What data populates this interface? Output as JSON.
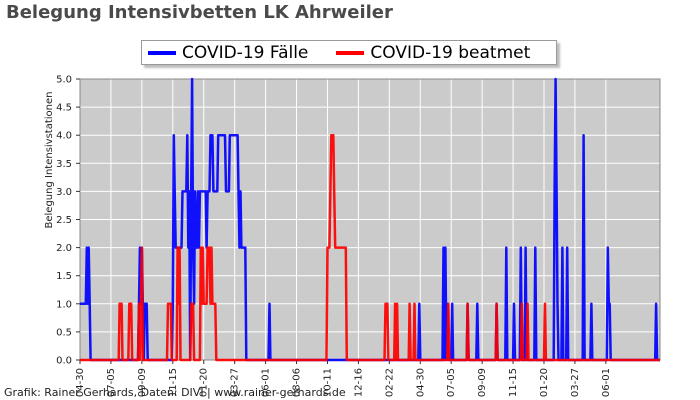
{
  "title": "Belegung Intensivbetten LK Ahrweiler",
  "footer": "Grafik: Rainer Gerhards, Daten: DIVI | www.rainer-gerhards.de",
  "chart_data": {
    "type": "line",
    "ylabel": "Belegung Intensivstationen",
    "ylim": [
      0,
      5
    ],
    "yticks": [
      "0.0",
      "0.5",
      "1.0",
      "1.5",
      "2.0",
      "2.5",
      "3.0",
      "3.5",
      "4.0",
      "4.5",
      "5.0"
    ],
    "xlim": [
      0,
      600
    ],
    "xticks": [
      {
        "x": 0,
        "label": "04-30"
      },
      {
        "x": 32,
        "label": "07-05"
      },
      {
        "x": 64,
        "label": "09-09"
      },
      {
        "x": 96,
        "label": "11-15"
      },
      {
        "x": 128,
        "label": "01-20"
      },
      {
        "x": 160,
        "label": "03-27"
      },
      {
        "x": 192,
        "label": "06-01"
      },
      {
        "x": 224,
        "label": "08-06"
      },
      {
        "x": 256,
        "label": "10-11"
      },
      {
        "x": 288,
        "label": "12-16"
      },
      {
        "x": 320,
        "label": "02-22"
      },
      {
        "x": 352,
        "label": "04-30"
      },
      {
        "x": 384,
        "label": "07-05"
      },
      {
        "x": 416,
        "label": "09-09"
      },
      {
        "x": 448,
        "label": "11-15"
      },
      {
        "x": 480,
        "label": "01-20"
      },
      {
        "x": 512,
        "label": "03-27"
      },
      {
        "x": 544,
        "label": "06-01"
      }
    ],
    "grid": true,
    "legend_position": "top-center",
    "series": [
      {
        "name": "COVID-19 Fälle",
        "color": "#0000ff",
        "points": [
          [
            0,
            1
          ],
          [
            6,
            1
          ],
          [
            7,
            2
          ],
          [
            8,
            1
          ],
          [
            9,
            2
          ],
          [
            10,
            1
          ],
          [
            11,
            0
          ],
          [
            60,
            0
          ],
          [
            61,
            1
          ],
          [
            62,
            2
          ],
          [
            63,
            1
          ],
          [
            64,
            2
          ],
          [
            65,
            1
          ],
          [
            66,
            0
          ],
          [
            67,
            1
          ],
          [
            69,
            1
          ],
          [
            70,
            0
          ],
          [
            95,
            0
          ],
          [
            96,
            1
          ],
          [
            97,
            4
          ],
          [
            98,
            3
          ],
          [
            99,
            2
          ],
          [
            105,
            2
          ],
          [
            106,
            3
          ],
          [
            110,
            3
          ],
          [
            111,
            4
          ],
          [
            112,
            2
          ],
          [
            113,
            3
          ],
          [
            114,
            0
          ],
          [
            115,
            3
          ],
          [
            116,
            5
          ],
          [
            117,
            2
          ],
          [
            118,
            1
          ],
          [
            119,
            3
          ],
          [
            120,
            2
          ],
          [
            121,
            2
          ],
          [
            122,
            3
          ],
          [
            123,
            2
          ],
          [
            124,
            3
          ],
          [
            130,
            3
          ],
          [
            131,
            2
          ],
          [
            132,
            3
          ],
          [
            134,
            3
          ],
          [
            135,
            4
          ],
          [
            137,
            4
          ],
          [
            138,
            3
          ],
          [
            142,
            3
          ],
          [
            143,
            4
          ],
          [
            150,
            4
          ],
          [
            151,
            3
          ],
          [
            154,
            3
          ],
          [
            155,
            4
          ],
          [
            163,
            4
          ],
          [
            164,
            3
          ],
          [
            165,
            2
          ],
          [
            166,
            3
          ],
          [
            167,
            2
          ],
          [
            171,
            2
          ],
          [
            172,
            0
          ],
          [
            195,
            0
          ],
          [
            196,
            1
          ],
          [
            197,
            0
          ],
          [
            350,
            0
          ],
          [
            351,
            1
          ],
          [
            352,
            0
          ],
          [
            375,
            0
          ],
          [
            376,
            2
          ],
          [
            377,
            0
          ],
          [
            378,
            2
          ],
          [
            379,
            0
          ],
          [
            380,
            1
          ],
          [
            381,
            0
          ],
          [
            384,
            0
          ],
          [
            385,
            1
          ],
          [
            386,
            0
          ],
          [
            400,
            0
          ],
          [
            401,
            1
          ],
          [
            402,
            0
          ],
          [
            410,
            0
          ],
          [
            411,
            1
          ],
          [
            412,
            0
          ],
          [
            430,
            0
          ],
          [
            431,
            1
          ],
          [
            432,
            0
          ],
          [
            440,
            0
          ],
          [
            441,
            2
          ],
          [
            442,
            0
          ],
          [
            448,
            0
          ],
          [
            449,
            1
          ],
          [
            450,
            0
          ],
          [
            455,
            0
          ],
          [
            456,
            2
          ],
          [
            457,
            0
          ],
          [
            460,
            0
          ],
          [
            461,
            2
          ],
          [
            462,
            0
          ],
          [
            470,
            0
          ],
          [
            471,
            2
          ],
          [
            472,
            0
          ],
          [
            490,
            0
          ],
          [
            491,
            3
          ],
          [
            492,
            5
          ],
          [
            493,
            3
          ],
          [
            494,
            1
          ],
          [
            495,
            0
          ],
          [
            498,
            0
          ],
          [
            499,
            2
          ],
          [
            500,
            0
          ],
          [
            503,
            0
          ],
          [
            504,
            2
          ],
          [
            505,
            0
          ],
          [
            520,
            0
          ],
          [
            521,
            4
          ],
          [
            522,
            0
          ],
          [
            528,
            0
          ],
          [
            529,
            1
          ],
          [
            530,
            0
          ],
          [
            545,
            0
          ],
          [
            546,
            2
          ],
          [
            547,
            1
          ],
          [
            548,
            1
          ],
          [
            549,
            0
          ],
          [
            595,
            0
          ],
          [
            596,
            1
          ],
          [
            597,
            0
          ],
          [
            600,
            0
          ]
        ]
      },
      {
        "name": "COVID-19 beatmet",
        "color": "#ff0000",
        "points": [
          [
            0,
            0
          ],
          [
            40,
            0
          ],
          [
            41,
            1
          ],
          [
            43,
            1
          ],
          [
            44,
            0
          ],
          [
            50,
            0
          ],
          [
            51,
            1
          ],
          [
            53,
            1
          ],
          [
            54,
            0
          ],
          [
            60,
            0
          ],
          [
            61,
            1
          ],
          [
            62,
            0
          ],
          [
            64,
            2
          ],
          [
            65,
            0
          ],
          [
            90,
            0
          ],
          [
            91,
            1
          ],
          [
            94,
            1
          ],
          [
            95,
            0
          ],
          [
            100,
            0
          ],
          [
            101,
            2
          ],
          [
            102,
            1
          ],
          [
            103,
            2
          ],
          [
            104,
            0
          ],
          [
            114,
            0
          ],
          [
            115,
            1
          ],
          [
            117,
            1
          ],
          [
            118,
            0
          ],
          [
            124,
            0
          ],
          [
            125,
            2
          ],
          [
            126,
            1
          ],
          [
            127,
            2
          ],
          [
            128,
            1
          ],
          [
            131,
            1
          ],
          [
            132,
            2
          ],
          [
            134,
            2
          ],
          [
            135,
            1
          ],
          [
            136,
            2
          ],
          [
            137,
            1
          ],
          [
            140,
            1
          ],
          [
            141,
            0
          ],
          [
            175,
            0
          ],
          [
            255,
            0
          ],
          [
            256,
            2
          ],
          [
            258,
            2
          ],
          [
            259,
            3
          ],
          [
            260,
            4
          ],
          [
            262,
            4
          ],
          [
            263,
            3
          ],
          [
            264,
            2
          ],
          [
            275,
            2
          ],
          [
            276,
            0
          ],
          [
            315,
            0
          ],
          [
            316,
            1
          ],
          [
            318,
            1
          ],
          [
            319,
            0
          ],
          [
            325,
            0
          ],
          [
            326,
            1
          ],
          [
            327,
            0
          ],
          [
            328,
            1
          ],
          [
            329,
            0
          ],
          [
            340,
            0
          ],
          [
            341,
            1
          ],
          [
            342,
            0
          ],
          [
            345,
            0
          ],
          [
            346,
            1
          ],
          [
            347,
            0
          ],
          [
            380,
            0
          ],
          [
            381,
            1
          ],
          [
            382,
            0
          ],
          [
            400,
            0
          ],
          [
            401,
            1
          ],
          [
            402,
            0
          ],
          [
            430,
            0
          ],
          [
            431,
            1
          ],
          [
            432,
            0
          ],
          [
            456,
            0
          ],
          [
            457,
            1
          ],
          [
            458,
            0
          ],
          [
            462,
            0
          ],
          [
            463,
            1
          ],
          [
            464,
            0
          ],
          [
            480,
            0
          ],
          [
            481,
            1
          ],
          [
            482,
            0
          ],
          [
            600,
            0
          ]
        ]
      }
    ]
  }
}
